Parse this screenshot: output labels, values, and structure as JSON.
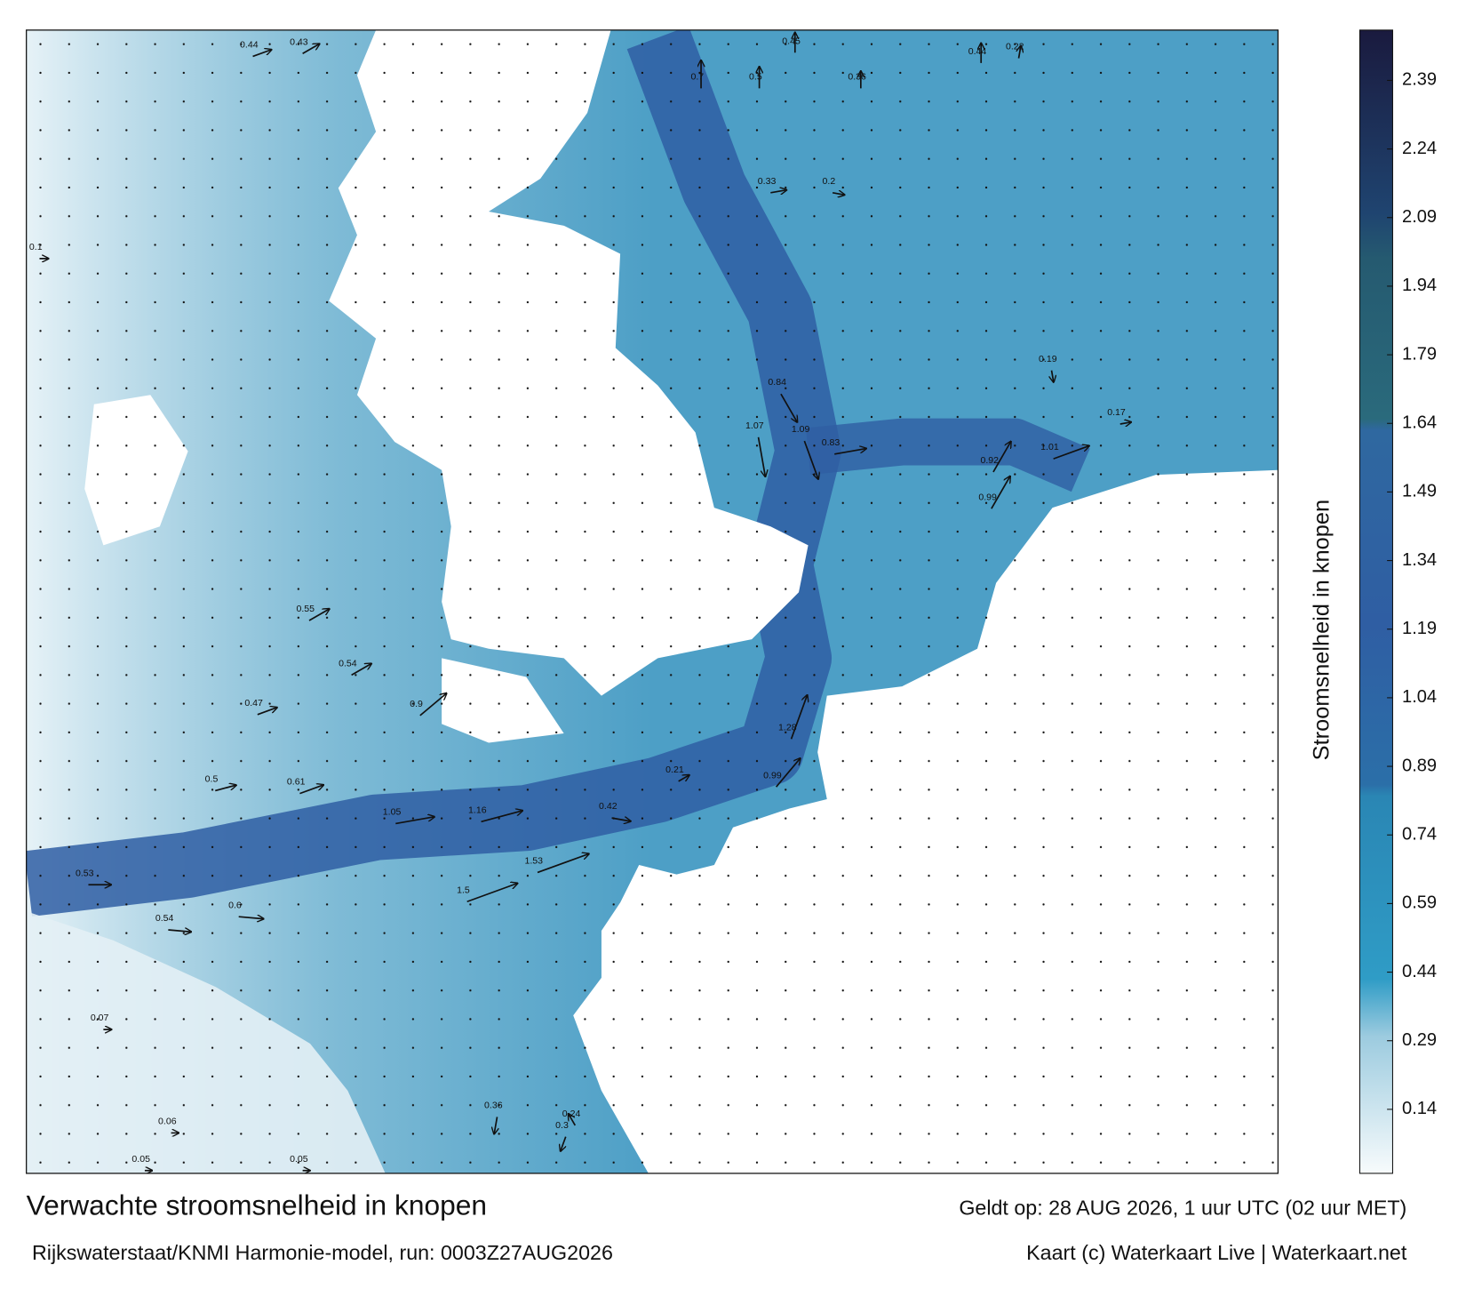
{
  "map": {
    "title": "Verwachte stroomsnelheid in knopen",
    "subtitle": "Rijkswaterstaat/KNMI Harmonie-model, run: 0003Z27AUG2026",
    "valid": "Geldt op: 28 AUG 2026, 1 uur UTC (02 uur MET)",
    "credit": "Kaart (c) Waterkaart Live | Waterkaart.net",
    "speed_labels": [
      0.44,
      0.43,
      0.7,
      0.5,
      0.45,
      0.36,
      0.44,
      0.22,
      0.84,
      1.09,
      1.07,
      0.83,
      0.92,
      1.01,
      0.99,
      0.55,
      0.54,
      0.9,
      1.05,
      1.16,
      1.5,
      1.53,
      1.28,
      0.99,
      0.6,
      0.54,
      0.53,
      0.61,
      0.47,
      0.5,
      0.36,
      0.3,
      0.24,
      0.06,
      0.05,
      0.05,
      0.07,
      0.1,
      0.2,
      0.33,
      0.19,
      0.17,
      0.42,
      0.21
    ]
  },
  "colorbar": {
    "label": "Stroomsnelheid in knopen",
    "lim": [
      0,
      2.5
    ],
    "ticks": [
      0.14,
      0.29,
      0.44,
      0.59,
      0.74,
      0.89,
      1.04,
      1.19,
      1.34,
      1.49,
      1.64,
      1.79,
      1.94,
      2.09,
      2.24,
      2.39
    ]
  }
}
